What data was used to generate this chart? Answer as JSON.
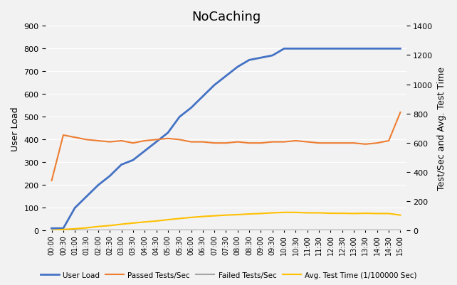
{
  "title": "NoCaching",
  "ylabel_left": "User Load",
  "ylabel_right": "Test/Sec and Avg. Test Time",
  "ylim_left": [
    0,
    900
  ],
  "ylim_right": [
    0,
    1400
  ],
  "yticks_left": [
    0,
    100,
    200,
    300,
    400,
    500,
    600,
    700,
    800,
    900
  ],
  "yticks_right": [
    0,
    200,
    400,
    600,
    800,
    1000,
    1200,
    1400
  ],
  "x_labels": [
    "00:00",
    "00:30",
    "01:00",
    "01:30",
    "02:00",
    "02:30",
    "03:00",
    "03:30",
    "04:00",
    "04:30",
    "05:00",
    "05:30",
    "06:00",
    "06:30",
    "07:00",
    "07:30",
    "08:00",
    "08:30",
    "09:00",
    "09:30",
    "10:00",
    "10:30",
    "11:00",
    "11:30",
    "12:00",
    "12:30",
    "13:00",
    "13:30",
    "14:00",
    "14:30",
    "15:00"
  ],
  "user_load": [
    10,
    10,
    100,
    150,
    200,
    240,
    290,
    310,
    350,
    390,
    430,
    500,
    540,
    590,
    640,
    680,
    720,
    750,
    760,
    770,
    800,
    800,
    800,
    800,
    800,
    800,
    800,
    800,
    800,
    800,
    800
  ],
  "passed_tests": [
    220,
    420,
    410,
    400,
    395,
    390,
    395,
    385,
    395,
    400,
    405,
    400,
    390,
    390,
    385,
    385,
    390,
    385,
    385,
    390,
    390,
    395,
    390,
    385,
    385,
    385,
    385,
    380,
    385,
    395,
    520
  ],
  "failed_tests": [
    0,
    0,
    0,
    0,
    0,
    0,
    0,
    0,
    0,
    0,
    0,
    0,
    0,
    0,
    0,
    0,
    0,
    0,
    0,
    0,
    0,
    0,
    0,
    0,
    0,
    0,
    0,
    0,
    0,
    0,
    0
  ],
  "avg_test_time": [
    0,
    5,
    8,
    12,
    18,
    22,
    28,
    33,
    38,
    42,
    48,
    53,
    58,
    62,
    65,
    68,
    70,
    73,
    75,
    78,
    80,
    80,
    78,
    78,
    76,
    76,
    75,
    76,
    75,
    75,
    68
  ],
  "color_user_load": "#4472C4",
  "color_passed": "#ED7D31",
  "color_failed": "#A5A5A5",
  "color_avg_time": "#FFC000",
  "background_color": "#F2F2F2",
  "grid_color": "#FFFFFF",
  "legend_labels": [
    "User Load",
    "Passed Tests/Sec",
    "Failed Tests/Sec",
    "Avg. Test Time (1/100000 Sec)"
  ],
  "title_fontsize": 13,
  "axis_fontsize": 9,
  "tick_fontsize": 8,
  "xtick_fontsize": 7
}
